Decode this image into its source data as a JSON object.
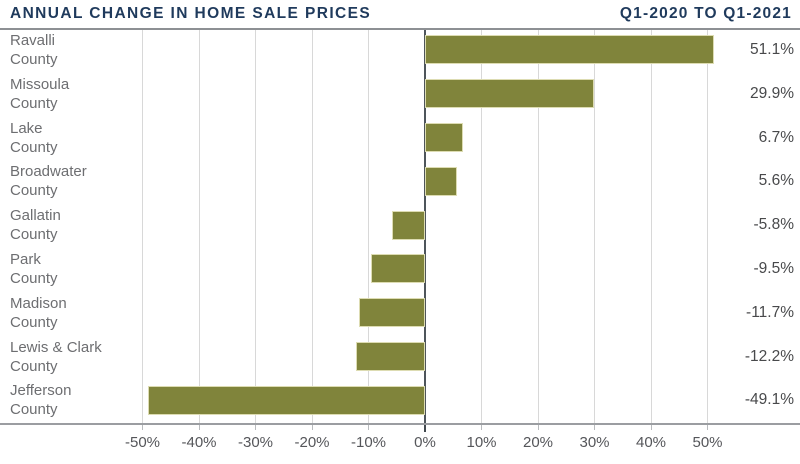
{
  "header": {
    "title": "ANNUAL CHANGE IN HOME SALE PRICES",
    "period": "Q1-2020 TO Q1-2021"
  },
  "chart_data": {
    "type": "bar",
    "orientation": "horizontal",
    "title": "Annual Change in Home Sale Prices",
    "subtitle": "Q1-2020 to Q1-2021",
    "categories": [
      "Ravalli County",
      "Missoula County",
      "Lake County",
      "Broadwater County",
      "Gallatin County",
      "Park County",
      "Madison County",
      "Lewis & Clark County",
      "Jefferson County"
    ],
    "values": [
      51.1,
      29.9,
      6.7,
      5.6,
      -5.8,
      -9.5,
      -11.7,
      -12.2,
      -49.1
    ],
    "value_labels": [
      "51.1%",
      "29.9%",
      "6.7%",
      "5.6%",
      "-5.8%",
      "-9.5%",
      "-11.7%",
      "-12.2%",
      "-49.1%"
    ],
    "x_ticks": [
      -50,
      -40,
      -30,
      -20,
      -10,
      0,
      10,
      20,
      30,
      40,
      50
    ],
    "x_tick_labels": [
      "-50%",
      "-40%",
      "-30%",
      "-20%",
      "-10%",
      "0%",
      "10%",
      "20%",
      "30%",
      "40%",
      "50%"
    ],
    "xlim": [
      -55,
      55
    ],
    "grid": true,
    "legend": false,
    "xlabel": "",
    "ylabel": ""
  },
  "colors": {
    "title_text": "#1f3a5c",
    "bar_fill": "#80843b",
    "bar_edge": "#dddcb2",
    "gridline": "#d8d8d8",
    "zero_line": "#4e555b",
    "axis_line": "#9b9da1",
    "category_label": "#6d6e71",
    "value_label": "#48494b",
    "tick_label": "#55565a"
  }
}
